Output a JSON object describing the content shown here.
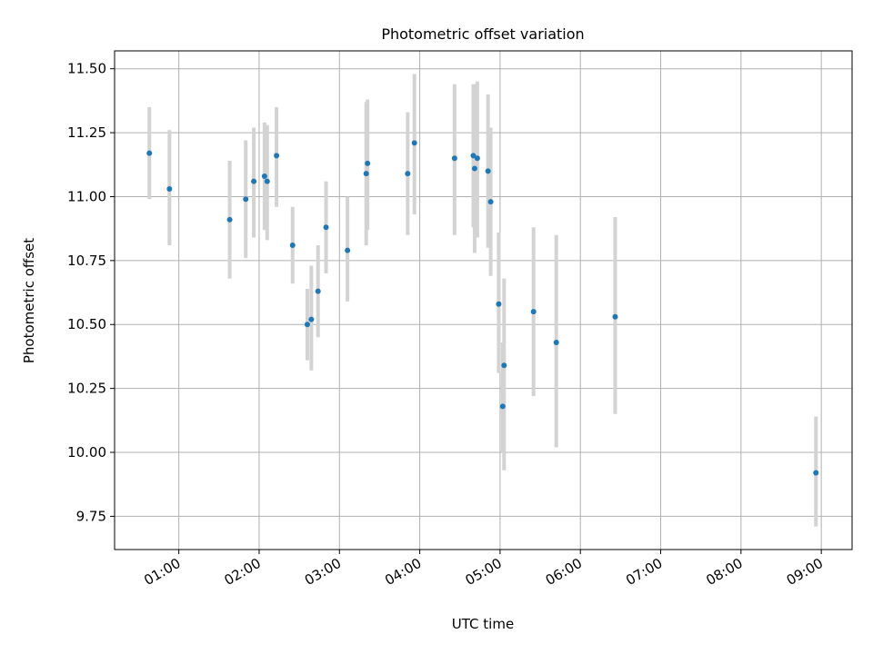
{
  "chart_data": {
    "type": "scatter",
    "title": "Photometric offset variation",
    "xlabel": "UTC time",
    "ylabel": "Photometric offset",
    "x_ticks": [
      "01:00",
      "02:00",
      "03:00",
      "04:00",
      "05:00",
      "06:00",
      "07:00",
      "08:00",
      "09:00"
    ],
    "y_ticks": [
      "9.75",
      "10.00",
      "10.25",
      "10.50",
      "10.75",
      "11.00",
      "11.25",
      "11.50"
    ],
    "y_tick_values": [
      9.75,
      10.0,
      10.25,
      10.5,
      10.75,
      11.0,
      11.25,
      11.5
    ],
    "xlim": [
      "00:12",
      "09:23"
    ],
    "ylim": [
      9.62,
      11.57
    ],
    "grid": true,
    "marker_color": "#1f77b4",
    "errorbar_color": "#d3d3d3",
    "series": [
      {
        "points": [
          {
            "x": "00:38",
            "y": 11.17,
            "ylo": 10.99,
            "yhi": 11.35
          },
          {
            "x": "00:53",
            "y": 11.03,
            "ylo": 10.81,
            "yhi": 11.26
          },
          {
            "x": "01:38",
            "y": 10.91,
            "ylo": 10.68,
            "yhi": 11.14
          },
          {
            "x": "01:50",
            "y": 10.99,
            "ylo": 10.76,
            "yhi": 11.22
          },
          {
            "x": "01:56",
            "y": 11.06,
            "ylo": 10.84,
            "yhi": 11.27
          },
          {
            "x": "02:04",
            "y": 11.08,
            "ylo": 10.87,
            "yhi": 11.29
          },
          {
            "x": "02:06",
            "y": 11.06,
            "ylo": 10.83,
            "yhi": 11.28
          },
          {
            "x": "02:13",
            "y": 11.16,
            "ylo": 10.96,
            "yhi": 11.35
          },
          {
            "x": "02:25",
            "y": 10.81,
            "ylo": 10.66,
            "yhi": 10.96
          },
          {
            "x": "02:36",
            "y": 10.5,
            "ylo": 10.36,
            "yhi": 10.64
          },
          {
            "x": "02:39",
            "y": 10.52,
            "ylo": 10.32,
            "yhi": 10.73
          },
          {
            "x": "02:44",
            "y": 10.63,
            "ylo": 10.45,
            "yhi": 10.81
          },
          {
            "x": "02:50",
            "y": 10.88,
            "ylo": 10.7,
            "yhi": 11.06
          },
          {
            "x": "03:06",
            "y": 10.79,
            "ylo": 10.59,
            "yhi": 11.0
          },
          {
            "x": "03:20",
            "y": 11.09,
            "ylo": 10.81,
            "yhi": 11.37
          },
          {
            "x": "03:21",
            "y": 11.13,
            "ylo": 10.87,
            "yhi": 11.38
          },
          {
            "x": "03:51",
            "y": 11.09,
            "ylo": 10.85,
            "yhi": 11.33
          },
          {
            "x": "03:56",
            "y": 11.21,
            "ylo": 10.93,
            "yhi": 11.48
          },
          {
            "x": "04:26",
            "y": 11.15,
            "ylo": 10.85,
            "yhi": 11.44
          },
          {
            "x": "04:40",
            "y": 11.16,
            "ylo": 10.88,
            "yhi": 11.44
          },
          {
            "x": "04:41",
            "y": 11.11,
            "ylo": 10.78,
            "yhi": 11.44
          },
          {
            "x": "04:43",
            "y": 11.15,
            "ylo": 10.84,
            "yhi": 11.45
          },
          {
            "x": "04:51",
            "y": 11.1,
            "ylo": 10.8,
            "yhi": 11.4
          },
          {
            "x": "04:53",
            "y": 10.98,
            "ylo": 10.69,
            "yhi": 11.27
          },
          {
            "x": "04:59",
            "y": 10.58,
            "ylo": 10.31,
            "yhi": 10.86
          },
          {
            "x": "05:02",
            "y": 10.18,
            "ylo": 10.0,
            "yhi": 10.43
          },
          {
            "x": "05:03",
            "y": 10.34,
            "ylo": 9.93,
            "yhi": 10.68
          },
          {
            "x": "05:25",
            "y": 10.55,
            "ylo": 10.22,
            "yhi": 10.88
          },
          {
            "x": "05:42",
            "y": 10.43,
            "ylo": 10.02,
            "yhi": 10.85
          },
          {
            "x": "06:26",
            "y": 10.53,
            "ylo": 10.15,
            "yhi": 10.92
          },
          {
            "x": "08:56",
            "y": 9.92,
            "ylo": 9.71,
            "yhi": 10.14
          }
        ]
      }
    ]
  }
}
